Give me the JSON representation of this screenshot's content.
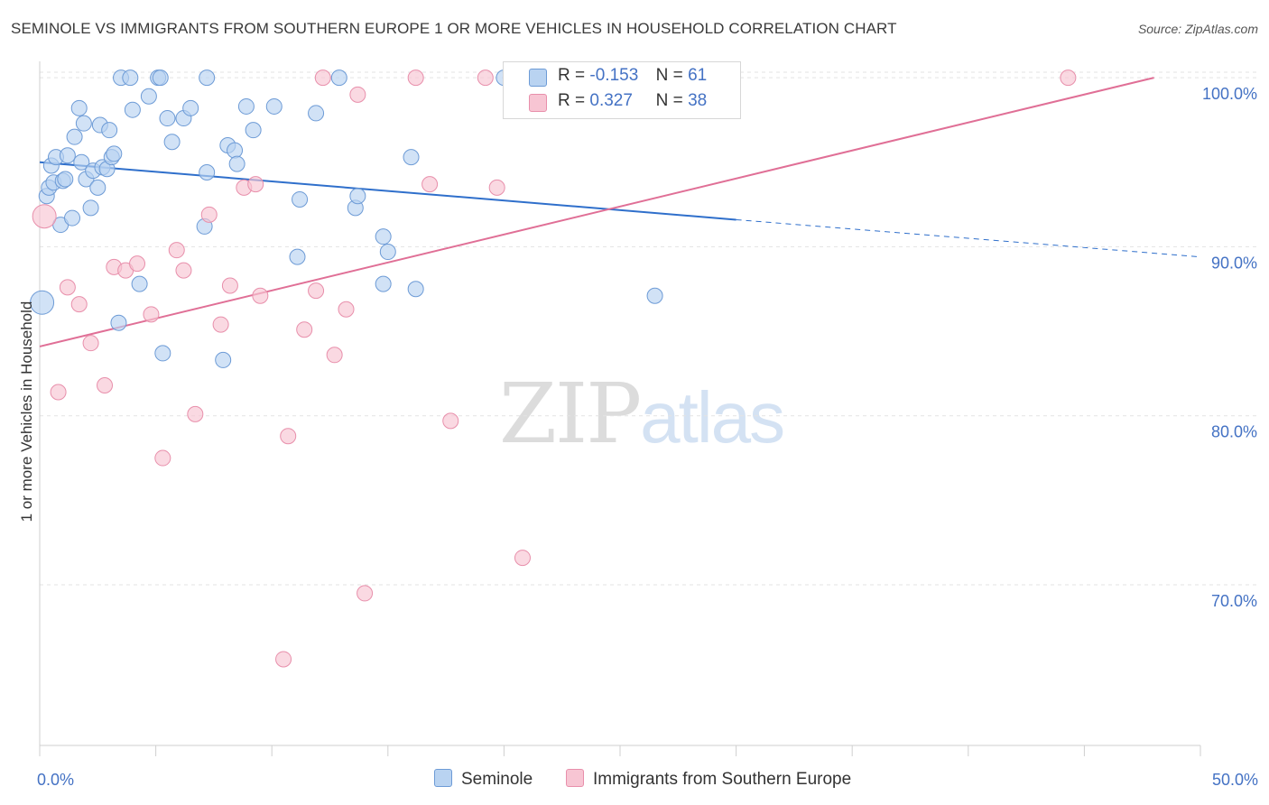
{
  "title": "SEMINOLE VS IMMIGRANTS FROM SOUTHERN EUROPE 1 OR MORE VEHICLES IN HOUSEHOLD CORRELATION CHART",
  "source": "Source: ZipAtlas.com",
  "watermark": {
    "zip": "ZIP",
    "atlas": "atlas"
  },
  "legend_top": {
    "rows": [
      {
        "r_label": "R =",
        "r_value": "-0.153",
        "n_label": "N =",
        "n_value": "61"
      },
      {
        "r_label": "R =",
        "r_value": "0.327",
        "n_label": "N =",
        "n_value": "38"
      }
    ]
  },
  "legend_bottom": [
    "Seminole",
    "Immigrants from Southern Europe"
  ],
  "colors": {
    "seminole_fill": "#b9d3f1",
    "seminole_stroke": "#6d9bd6",
    "seminole_line": "#2f6fcb",
    "immig_fill": "#f7c5d3",
    "immig_stroke": "#e88fab",
    "immig_line": "#e06f96",
    "tick_label": "#4472c4",
    "grid": "#e3e3e3"
  },
  "chart_data": {
    "type": "scatter",
    "title": "SEMINOLE VS IMMIGRANTS FROM SOUTHERN EUROPE 1 OR MORE VEHICLES IN HOUSEHOLD CORRELATION CHART",
    "xlabel": "",
    "ylabel": "1 or more Vehicles in Household",
    "xlim": [
      0,
      50
    ],
    "ylim": [
      60.5,
      101.5
    ],
    "x_ticks": [
      0,
      5,
      10,
      15,
      20,
      25,
      30,
      35,
      40,
      45,
      50
    ],
    "x_tick_labels": {
      "0": "0.0%",
      "50": "50.0%"
    },
    "y_ticks": [
      70,
      80,
      90,
      100
    ],
    "y_tick_labels": [
      "70.0%",
      "80.0%",
      "90.0%",
      "100.0%"
    ],
    "grid": true,
    "legend_position": "top-center",
    "series": [
      {
        "name": "Seminole",
        "r": -0.153,
        "n": 61,
        "trend": {
          "x0": 0,
          "y0": 95.0,
          "x1": 30,
          "y1": 91.6,
          "dash_to_x": 50,
          "dash_to_y": 89.4
        },
        "points": [
          [
            0.1,
            86.7
          ],
          [
            0.3,
            93.0
          ],
          [
            0.4,
            93.5
          ],
          [
            0.5,
            94.8
          ],
          [
            0.6,
            93.8
          ],
          [
            0.7,
            95.3
          ],
          [
            0.9,
            91.3
          ],
          [
            1.0,
            93.9
          ],
          [
            1.1,
            94.0
          ],
          [
            1.2,
            95.4
          ],
          [
            1.4,
            91.7
          ],
          [
            1.5,
            96.5
          ],
          [
            1.7,
            98.2
          ],
          [
            1.8,
            95.0
          ],
          [
            1.9,
            97.3
          ],
          [
            2.0,
            94.0
          ],
          [
            2.2,
            92.3
          ],
          [
            2.3,
            94.5
          ],
          [
            2.5,
            93.5
          ],
          [
            2.6,
            97.2
          ],
          [
            2.7,
            94.7
          ],
          [
            2.9,
            94.6
          ],
          [
            3.0,
            96.9
          ],
          [
            3.1,
            95.3
          ],
          [
            3.2,
            95.5
          ],
          [
            3.4,
            85.5
          ],
          [
            3.5,
            100.0
          ],
          [
            3.9,
            100.0
          ],
          [
            4.0,
            98.1
          ],
          [
            4.3,
            87.8
          ],
          [
            4.7,
            98.9
          ],
          [
            5.1,
            100.0
          ],
          [
            5.2,
            100.0
          ],
          [
            5.3,
            83.7
          ],
          [
            5.5,
            97.6
          ],
          [
            5.7,
            96.2
          ],
          [
            6.2,
            97.6
          ],
          [
            6.5,
            98.2
          ],
          [
            7.1,
            91.2
          ],
          [
            7.2,
            94.4
          ],
          [
            7.2,
            100.0
          ],
          [
            8.1,
            96.0
          ],
          [
            8.4,
            95.7
          ],
          [
            8.5,
            94.9
          ],
          [
            8.9,
            98.3
          ],
          [
            9.2,
            96.9
          ],
          [
            7.9,
            83.3
          ],
          [
            10.1,
            98.3
          ],
          [
            11.1,
            89.4
          ],
          [
            11.2,
            92.8
          ],
          [
            11.9,
            97.9
          ],
          [
            12.9,
            100.0
          ],
          [
            13.6,
            92.3
          ],
          [
            13.7,
            93.0
          ],
          [
            14.8,
            90.6
          ],
          [
            15.0,
            89.7
          ],
          [
            14.8,
            87.8
          ],
          [
            16.0,
            95.3
          ],
          [
            16.2,
            87.5
          ],
          [
            20.0,
            100.0
          ],
          [
            26.5,
            87.1
          ]
        ]
      },
      {
        "name": "Immigrants from Southern Europe",
        "r": 0.327,
        "n": 38,
        "trend": {
          "x0": 0,
          "y0": 84.1,
          "x1": 48,
          "y1": 100.0
        },
        "points": [
          [
            0.2,
            91.8
          ],
          [
            0.8,
            81.4
          ],
          [
            1.2,
            87.6
          ],
          [
            1.7,
            86.6
          ],
          [
            2.2,
            84.3
          ],
          [
            2.8,
            81.8
          ],
          [
            3.2,
            88.8
          ],
          [
            3.7,
            88.6
          ],
          [
            4.2,
            89.0
          ],
          [
            4.8,
            86.0
          ],
          [
            5.3,
            77.5
          ],
          [
            5.9,
            89.8
          ],
          [
            6.2,
            88.6
          ],
          [
            6.7,
            80.1
          ],
          [
            7.3,
            91.9
          ],
          [
            7.8,
            85.4
          ],
          [
            8.2,
            87.7
          ],
          [
            8.8,
            93.5
          ],
          [
            9.3,
            93.7
          ],
          [
            9.5,
            87.1
          ],
          [
            10.5,
            65.6
          ],
          [
            10.7,
            78.8
          ],
          [
            11.4,
            85.1
          ],
          [
            11.9,
            87.4
          ],
          [
            12.2,
            100.0
          ],
          [
            12.7,
            83.6
          ],
          [
            13.2,
            86.3
          ],
          [
            13.7,
            99.0
          ],
          [
            14.0,
            69.5
          ],
          [
            16.2,
            100.0
          ],
          [
            16.8,
            93.7
          ],
          [
            17.7,
            79.7
          ],
          [
            19.2,
            100.0
          ],
          [
            19.7,
            93.5
          ],
          [
            20.8,
            71.6
          ],
          [
            22.2,
            100.0
          ],
          [
            22.7,
            100.0
          ],
          [
            44.3,
            100.0
          ]
        ]
      }
    ]
  }
}
